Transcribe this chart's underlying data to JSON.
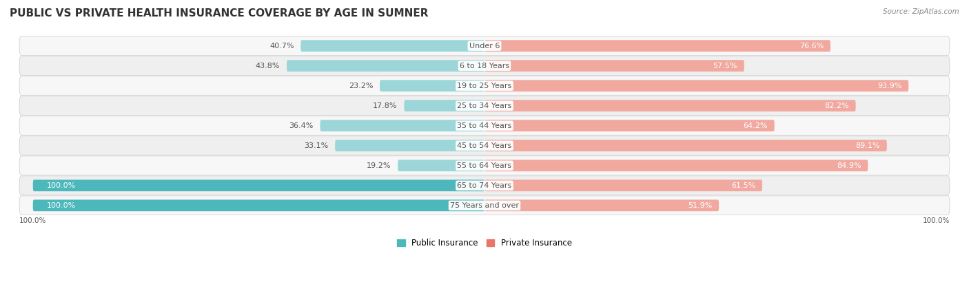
{
  "title": "PUBLIC VS PRIVATE HEALTH INSURANCE COVERAGE BY AGE IN SUMNER",
  "source": "Source: ZipAtlas.com",
  "categories": [
    "Under 6",
    "6 to 18 Years",
    "19 to 25 Years",
    "25 to 34 Years",
    "35 to 44 Years",
    "45 to 54 Years",
    "55 to 64 Years",
    "65 to 74 Years",
    "75 Years and over"
  ],
  "public_values": [
    40.7,
    43.8,
    23.2,
    17.8,
    36.4,
    33.1,
    19.2,
    100.0,
    100.0
  ],
  "private_values": [
    76.6,
    57.5,
    93.9,
    82.2,
    64.2,
    89.1,
    84.9,
    61.5,
    51.9
  ],
  "public_color": "#4db8bc",
  "private_color": "#e8756b",
  "public_color_light": "#9dd6d8",
  "private_color_light": "#f0a89f",
  "label_color_dark": "#555555",
  "label_color_white": "#ffffff",
  "row_colors": [
    "#f7f7f7",
    "#efefef"
  ],
  "max_value": 100.0,
  "legend_public": "Public Insurance",
  "legend_private": "Private Insurance",
  "title_fontsize": 11,
  "label_fontsize": 8,
  "axis_label_fontsize": 7.5,
  "source_fontsize": 7.5
}
